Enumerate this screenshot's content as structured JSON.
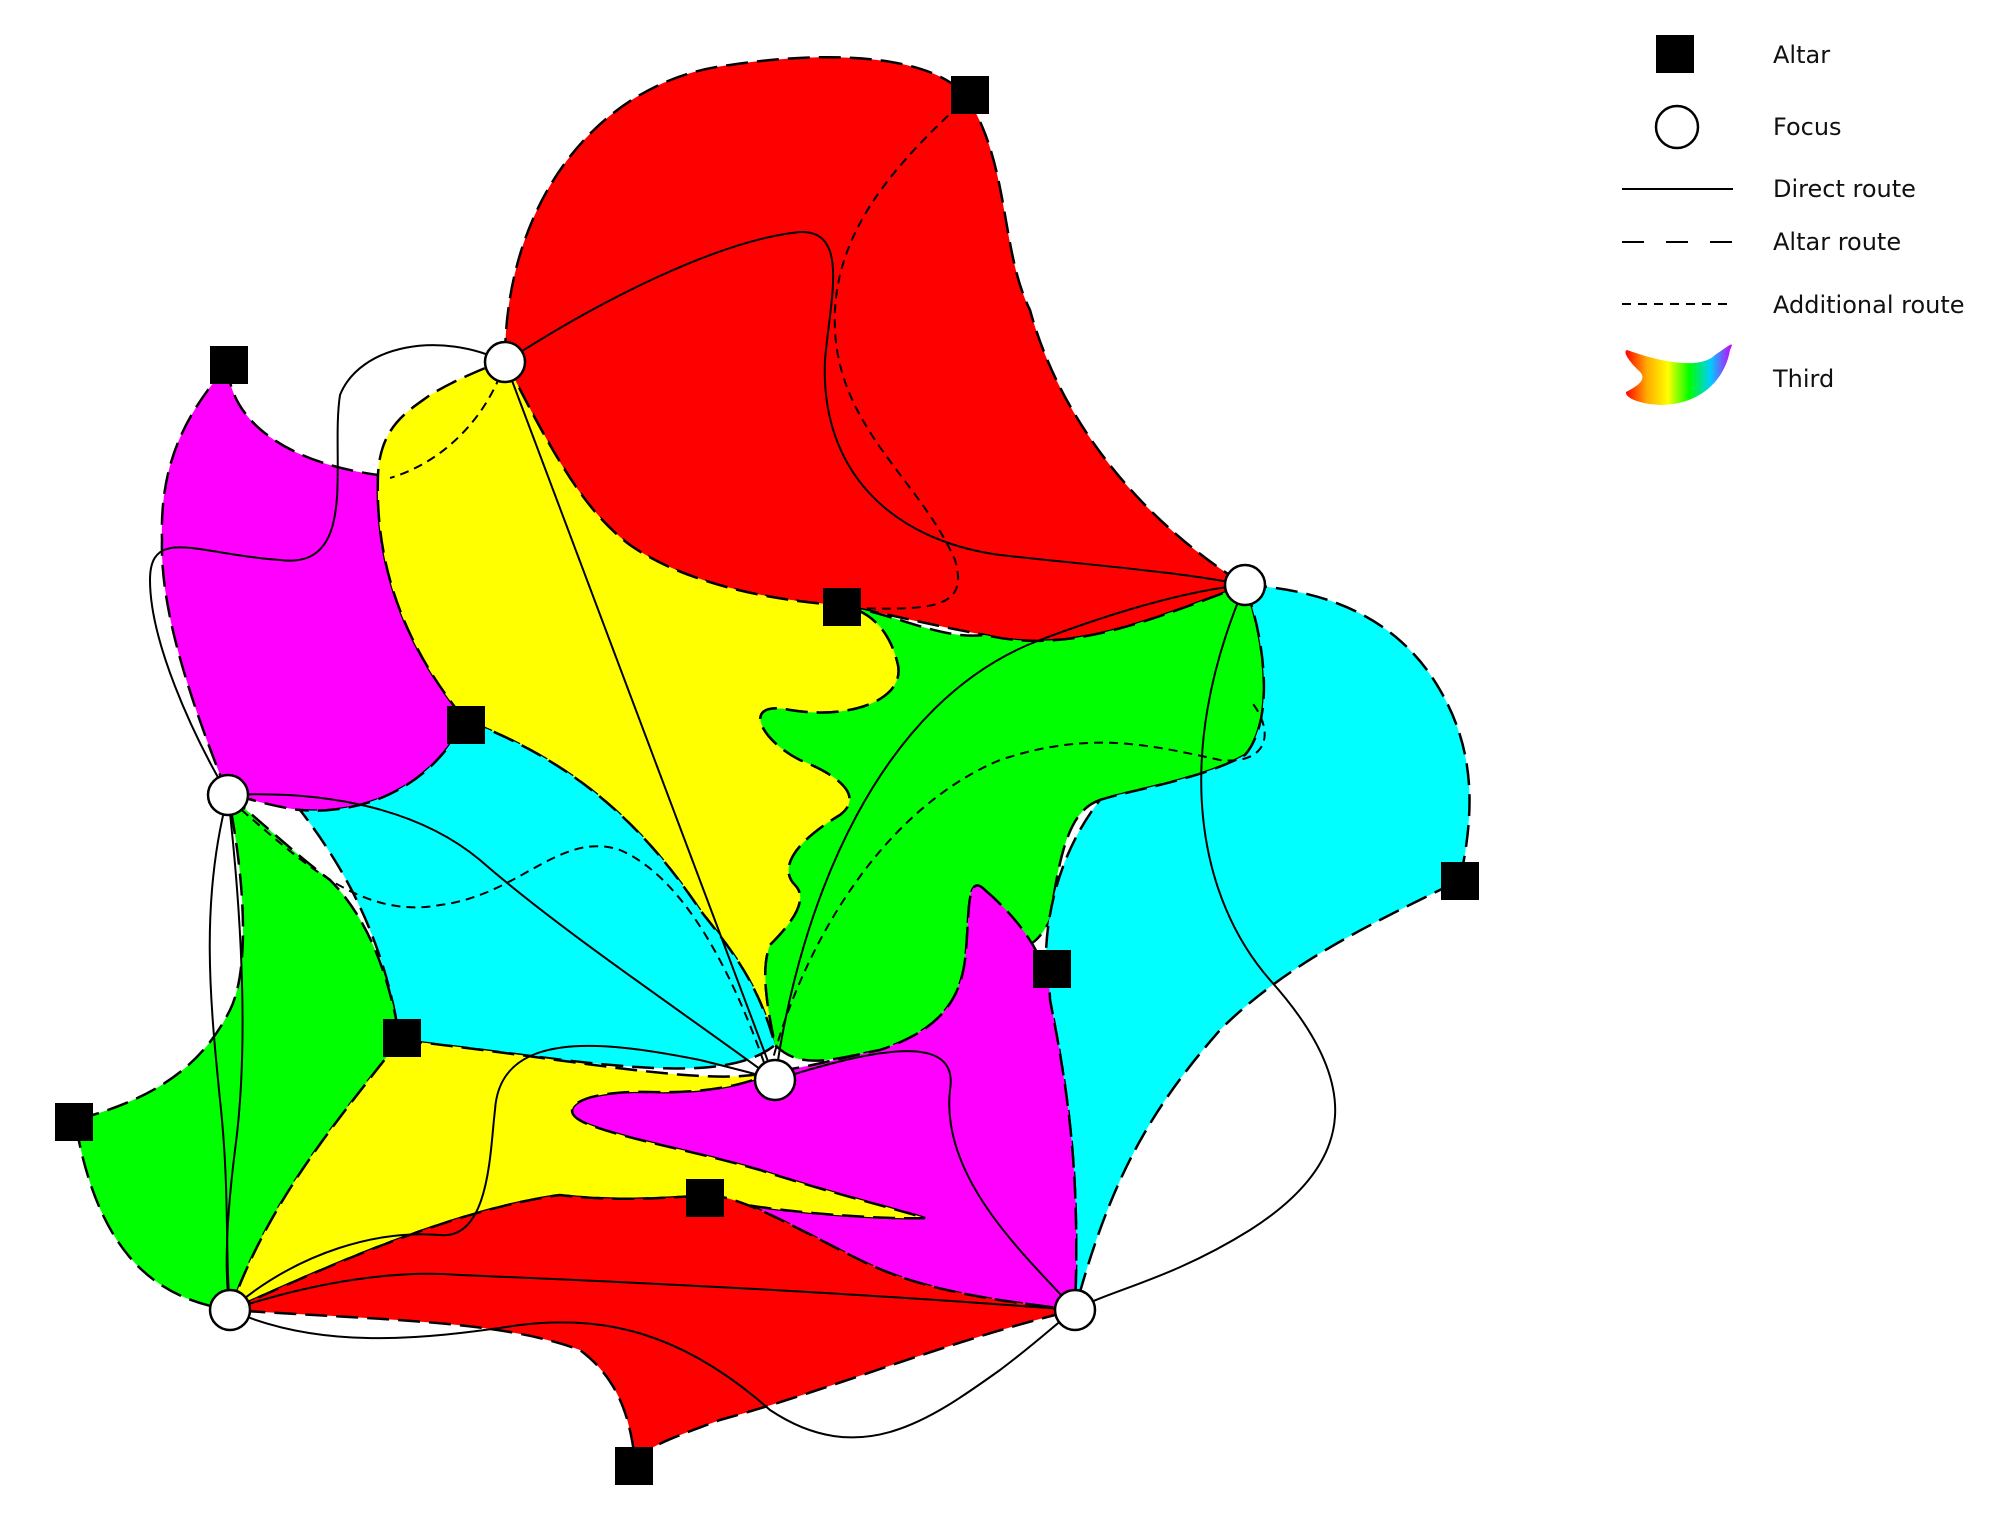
{
  "colors": {
    "red": "#ff0000",
    "yellow": "#ffff00",
    "green": "#00ff00",
    "cyan": "#00ffff",
    "magenta": "#ff00ff",
    "stroke": "#000000",
    "focus_fill": "#ffffff"
  },
  "legend": {
    "items": [
      {
        "key": "altar",
        "label": "Altar"
      },
      {
        "key": "focus",
        "label": "Focus"
      },
      {
        "key": "direct",
        "label": "Direct route"
      },
      {
        "key": "altar_route",
        "label": "Altar route"
      },
      {
        "key": "additional",
        "label": "Additional route"
      },
      {
        "key": "third",
        "label": "Third"
      }
    ]
  }
}
